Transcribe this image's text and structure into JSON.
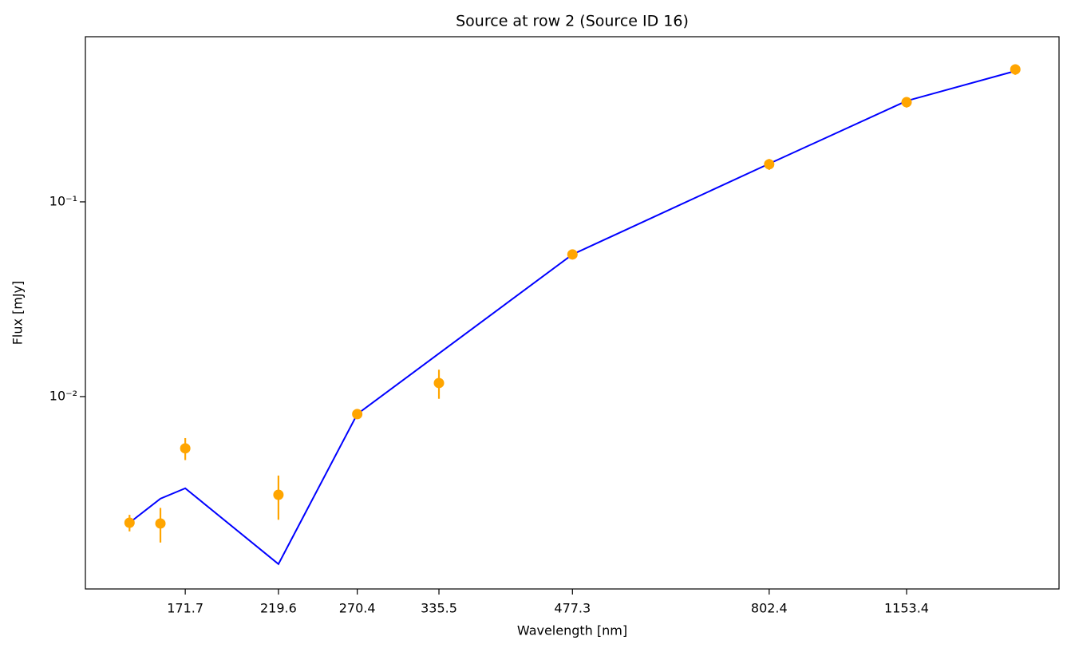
{
  "chart_data": {
    "type": "line",
    "title": "Source at row 2 (Source ID 16)",
    "xlabel": "Wavelength [nm]",
    "ylabel": "Flux [mJy]",
    "xscale": "log",
    "yscale": "log",
    "x": [
      148.2,
      160.8,
      171.7,
      219.6,
      270.4,
      335.5,
      477.3,
      802.4,
      1153.4,
      1537
    ],
    "series": [
      {
        "style": "errorbar",
        "color": "#ffa500",
        "values": [
          0.00225,
          0.00223,
          0.00542,
          0.00313,
          0.00813,
          0.01174,
          0.0537,
          0.156,
          0.325,
          0.479
        ],
        "errors": [
          0.00022,
          0.00045,
          0.0007,
          0.0008,
          0.0003,
          0.002,
          0.002,
          0.01,
          0.02,
          0.03
        ]
      },
      {
        "style": "line",
        "color": "#0000ff",
        "values": [
          0.00225,
          0.00299,
          0.00338,
          0.00138,
          0.00813,
          0.01664,
          0.0537,
          0.157,
          0.33,
          0.47
        ]
      }
    ],
    "xlim": [
      131.9,
      1725
    ],
    "ylim": [
      0.001028,
      0.705
    ],
    "xticks": [
      171.7,
      219.6,
      270.4,
      335.5,
      477.3,
      802.4,
      1153.4
    ],
    "yticks": [
      {
        "value": 0.01,
        "label": "10⁻²"
      },
      {
        "value": 0.1,
        "label": "10⁻¹"
      }
    ]
  }
}
